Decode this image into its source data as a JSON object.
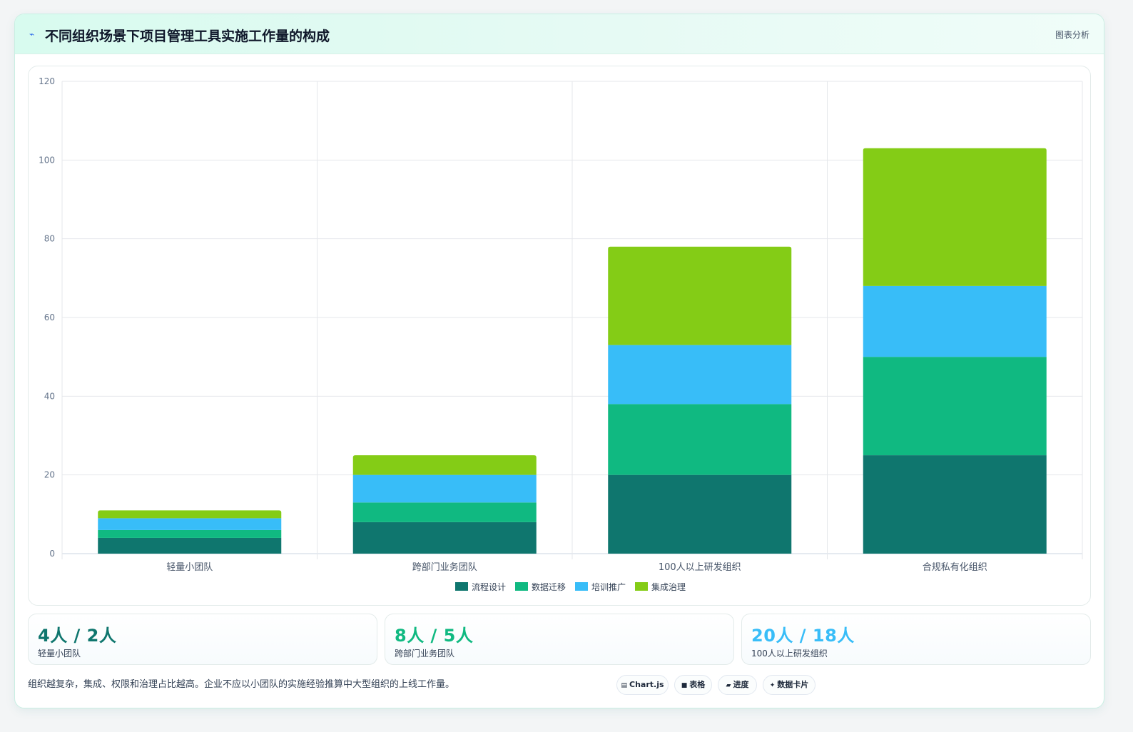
{
  "header": {
    "icon": "trend-icon",
    "title": "不同组织场景下项目管理工具实施工作量的构成",
    "right_label": "图表分析"
  },
  "chart_data": {
    "type": "bar",
    "stacked": true,
    "categories": [
      "轻量小团队",
      "跨部门业务团队",
      "100人以上研发组织",
      "合规私有化组织"
    ],
    "series": [
      {
        "name": "流程设计",
        "color": "#0f766e",
        "values": [
          4,
          8,
          20,
          25
        ]
      },
      {
        "name": "数据迁移",
        "color": "#10b981",
        "values": [
          2,
          5,
          18,
          25
        ]
      },
      {
        "name": "培训推广",
        "color": "#38bdf8",
        "values": [
          3,
          7,
          15,
          18
        ]
      },
      {
        "name": "集成治理",
        "color": "#84cc16",
        "values": [
          2,
          5,
          25,
          35
        ]
      }
    ],
    "ylim": [
      0,
      120
    ],
    "yticks": [
      0,
      20,
      40,
      60,
      80,
      100,
      120
    ],
    "grid": true,
    "legend": "bottom-center"
  },
  "stats": [
    {
      "value": "4人 / 2人",
      "label": "轻量小团队",
      "color": "#0f766e"
    },
    {
      "value": "8人 / 5人",
      "label": "跨部门业务团队",
      "color": "#10b981"
    },
    {
      "value": "20人 / 18人",
      "label": "100人以上研发组织",
      "color": "#38bdf8"
    }
  ],
  "footer": {
    "note": "组织越复杂，集成、权限和治理占比越高。企业不应以小团队的实施经验推算中大型组织的上线工作量。",
    "chips": [
      {
        "icon": "chart-icon",
        "glyph": "▤",
        "label": "Chart.js"
      },
      {
        "icon": "table-icon",
        "glyph": "■",
        "label": "表格"
      },
      {
        "icon": "progress-icon",
        "glyph": "▰",
        "label": "进度"
      },
      {
        "icon": "sparkle-icon",
        "glyph": "✦",
        "label": "数据卡片"
      }
    ]
  }
}
